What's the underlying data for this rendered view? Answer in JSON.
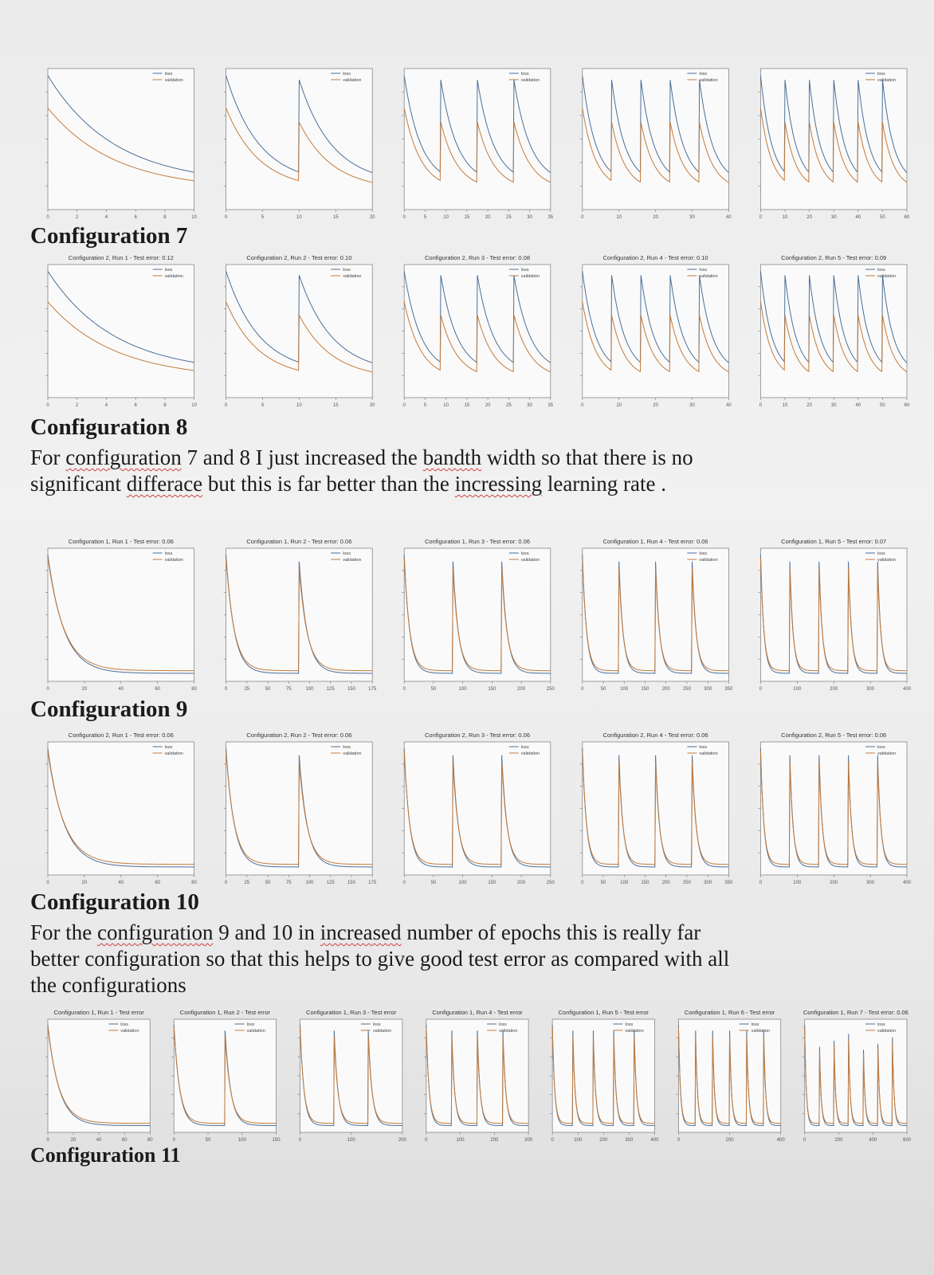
{
  "colors": {
    "loss": "#4a6f98",
    "validation": "#c47a3a",
    "text": "#1b1b1b",
    "spell_underline": "#d04040"
  },
  "legend": {
    "loss": "loss",
    "validation": "validation"
  },
  "sections": [
    {
      "heading": "Configuration 7",
      "paragraph": [],
      "chart_row": {
        "peaks": [
          1,
          2,
          4,
          5,
          6
        ],
        "style": "slow",
        "titles": [
          "",
          "",
          "",
          "",
          ""
        ],
        "xticks": [
          [
            "0",
            "2",
            "4",
            "6",
            "8",
            "10"
          ],
          [
            "0",
            "5",
            "10",
            "15",
            "20"
          ],
          [
            "0",
            "5",
            "10",
            "15",
            "20",
            "25",
            "30",
            "35"
          ],
          [
            "0",
            "10",
            "20",
            "30",
            "40"
          ],
          [
            "0",
            "10",
            "20",
            "30",
            "40",
            "50",
            "60"
          ]
        ]
      }
    },
    {
      "heading": "Configuration 8",
      "paragraph": [
        [
          {
            "t": "For "
          },
          {
            "t": "configuration",
            "u": true
          },
          {
            "t": " 7 and 8 I just increased the "
          },
          {
            "t": "bandth",
            "u": true
          },
          {
            "t": " width so that there is no"
          }
        ],
        [
          {
            "t": "significant "
          },
          {
            "t": "differace",
            "u": true
          },
          {
            "t": " but this is far better than the "
          },
          {
            "t": "incressing",
            "u": true
          },
          {
            "t": " learning rate ."
          }
        ]
      ],
      "chart_row": {
        "peaks": [
          1,
          2,
          4,
          5,
          6
        ],
        "style": "slow",
        "titles": [
          "Configuration 2, Run 1 - Test error: 0.12",
          "Configuration 2, Run 2 - Test error: 0.10",
          "Configuration 2, Run 3 - Test error: 0.08",
          "Configuration 2, Run 4 - Test error: 0.10",
          "Configuration 2, Run 5 - Test error: 0.09"
        ],
        "xticks": [
          [
            "0",
            "2",
            "4",
            "6",
            "8",
            "10"
          ],
          [
            "0",
            "5",
            "10",
            "15",
            "20"
          ],
          [
            "0",
            "5",
            "10",
            "15",
            "20",
            "25",
            "30",
            "35"
          ],
          [
            "0",
            "10",
            "20",
            "30",
            "40"
          ],
          [
            "0",
            "10",
            "20",
            "30",
            "40",
            "50",
            "60"
          ]
        ]
      }
    },
    {
      "heading": "Configuration 9",
      "paragraph": [],
      "chart_row": {
        "peaks": [
          1,
          2,
          3,
          4,
          5
        ],
        "style": "fast",
        "titles": [
          "Configuration 1, Run 1 - Test error: 0.06",
          "Configuration 1, Run 2 - Test error: 0.06",
          "Configuration 1, Run 3 - Test error: 0.06",
          "Configuration 1, Run 4 - Test error: 0.06",
          "Configuration 1, Run 5 - Test error: 0.07"
        ],
        "xticks": [
          [
            "0",
            "20",
            "40",
            "60",
            "80"
          ],
          [
            "0",
            "25",
            "50",
            "75",
            "100",
            "125",
            "150",
            "175"
          ],
          [
            "0",
            "50",
            "100",
            "150",
            "200",
            "250"
          ],
          [
            "0",
            "50",
            "100",
            "150",
            "200",
            "250",
            "300",
            "350"
          ],
          [
            "0",
            "100",
            "200",
            "300",
            "400"
          ]
        ]
      }
    },
    {
      "heading": "Configuration 10",
      "paragraph": [
        [
          {
            "t": "For the "
          },
          {
            "t": "configuration",
            "u": true
          },
          {
            "t": " 9 and 10 in "
          },
          {
            "t": "increased",
            "u": true
          },
          {
            "t": " number of epochs this is really far"
          }
        ],
        [
          {
            "t": "better configuration so that this helps to give good test error as compared with all"
          }
        ],
        [
          {
            "t": "the configurations"
          }
        ]
      ],
      "chart_row": {
        "peaks": [
          1,
          2,
          3,
          4,
          5
        ],
        "style": "fast",
        "titles": [
          "Configuration 2, Run 1 - Test error: 0.06",
          "Configuration 2, Run 2 - Test error: 0.06",
          "Configuration 2, Run 3 - Test error: 0.06",
          "Configuration 2, Run 4 - Test error: 0.06",
          "Configuration 2, Run 5 - Test error: 0.06"
        ],
        "xticks": [
          [
            "0",
            "20",
            "40",
            "60",
            "80"
          ],
          [
            "0",
            "25",
            "50",
            "75",
            "100",
            "125",
            "150",
            "175"
          ],
          [
            "0",
            "50",
            "100",
            "150",
            "200",
            "250"
          ],
          [
            "0",
            "50",
            "100",
            "150",
            "200",
            "250",
            "300",
            "350"
          ],
          [
            "0",
            "100",
            "200",
            "300",
            "400"
          ]
        ]
      }
    },
    {
      "heading": "Configuration 11",
      "paragraph": [],
      "chart_row": {
        "peaks": [
          1,
          2,
          3,
          4,
          5,
          6,
          7
        ],
        "style": "fast",
        "titles": [
          "Configuration 1, Run 1 - Test error",
          "Configuration 1, Run 2 - Test error",
          "Configuration 1, Run 3 - Test error",
          "Configuration 1, Run 4 - Test error",
          "Configuration 1, Run 5 - Test error",
          "Configuration 1, Run 6 - Test error",
          "Configuration 1, Run 7 - Test error: 0.06"
        ],
        "xticks": [
          [
            "0",
            "20",
            "40",
            "60",
            "80"
          ],
          [
            "0",
            "50",
            "100",
            "150"
          ],
          [
            "0",
            "100",
            "200"
          ],
          [
            "0",
            "100",
            "200",
            "300"
          ],
          [
            "0",
            "100",
            "200",
            "300",
            "400"
          ],
          [
            "0",
            "200",
            "400"
          ],
          [
            "0",
            "200",
            "400",
            "600"
          ]
        ]
      }
    }
  ]
}
